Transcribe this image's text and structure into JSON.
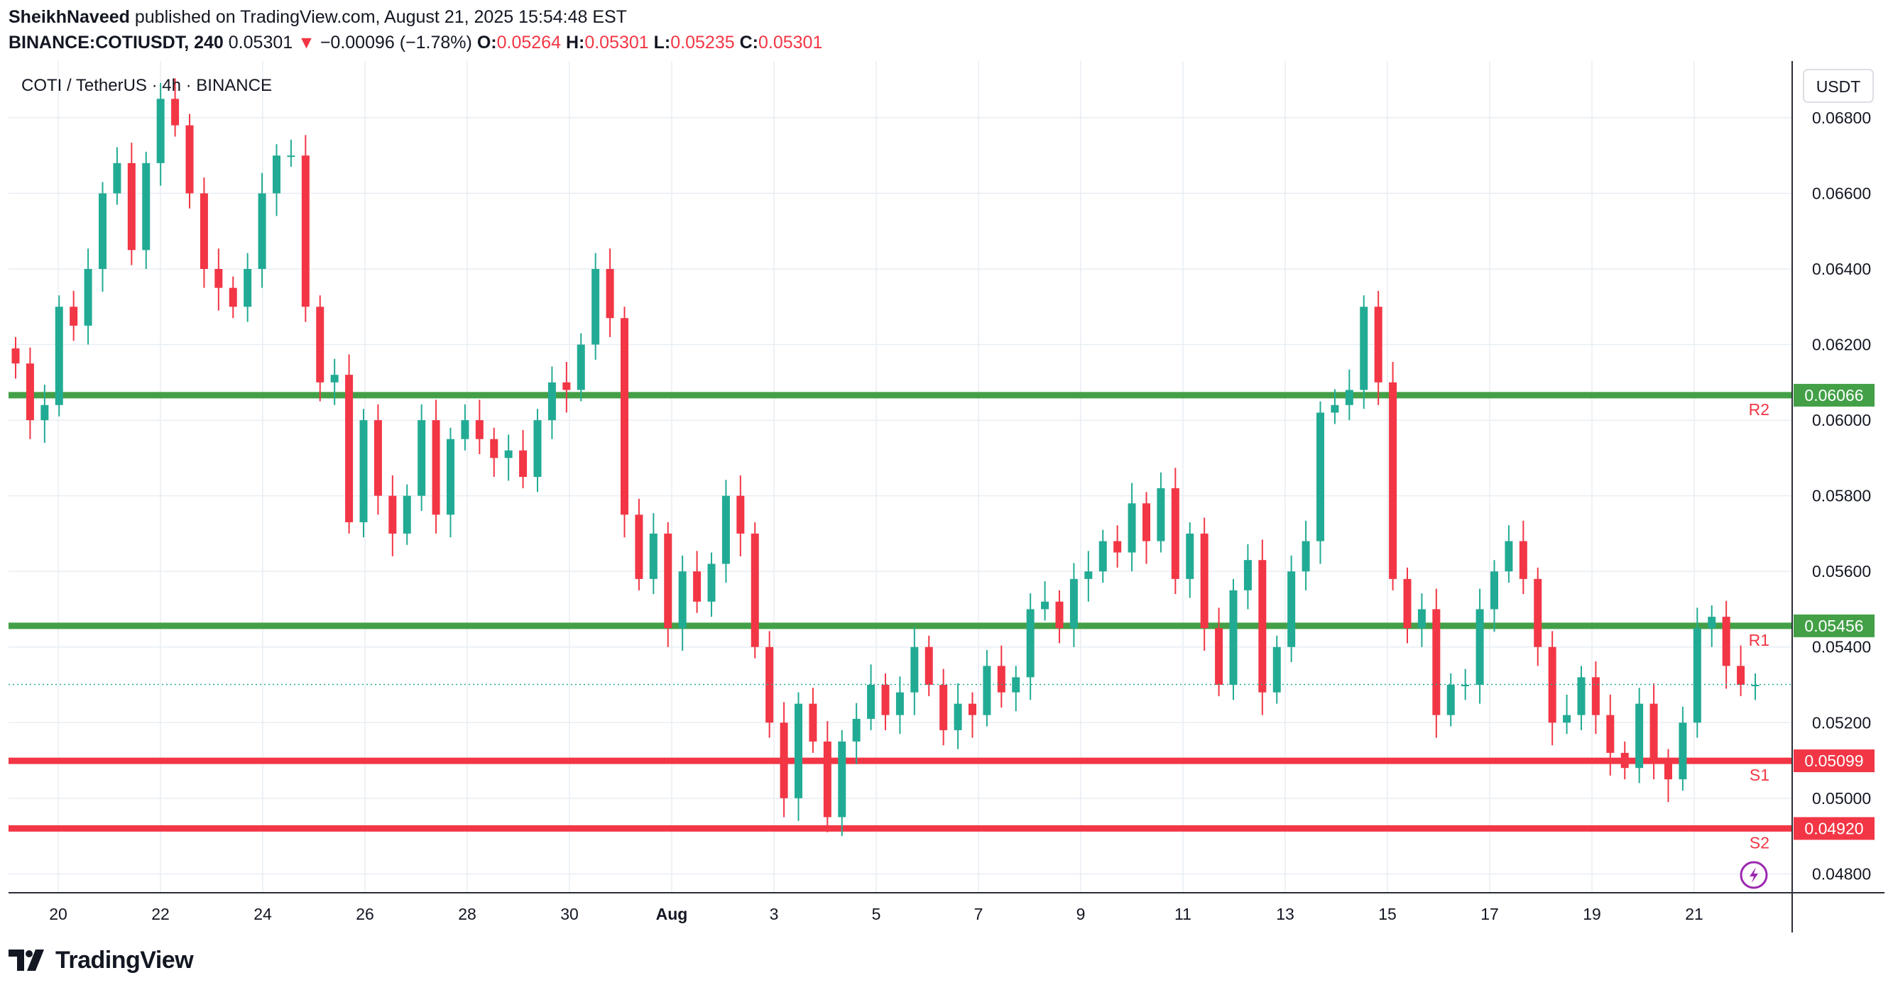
{
  "header": {
    "author": "SheikhNaveed",
    "published": "published on TradingView.com, August 21, 2025 15:54:48 EST",
    "symbol": "BINANCE:COTIUSDT, 240",
    "last": "0.05301",
    "change_arrow": "▼",
    "change": "−0.00096 (−1.78%)",
    "o_label": "O:",
    "o_value": "0.05264",
    "h_label": "H:",
    "h_value": "0.05301",
    "l_label": "L:",
    "l_value": "0.05235",
    "c_label": "C:",
    "c_value": "0.05301"
  },
  "legend_title": "COTI / TetherUS · 4h · BINANCE",
  "currency_button": "USDT",
  "brand": "TradingView",
  "colors": {
    "up": "#22ab94",
    "down": "#f23645",
    "resistance": "#43a047",
    "support": "#f23645",
    "grid": "#e8eef3",
    "text": "#131722"
  },
  "chart_data": {
    "type": "candlestick",
    "timeframe": "4h",
    "ylim": [
      0.0475,
      0.0695
    ],
    "y_ticks": [
      "0.04800",
      "0.05000",
      "0.05200",
      "0.05400",
      "0.05600",
      "0.05800",
      "0.06000",
      "0.06200",
      "0.06400",
      "0.06600",
      "0.06800"
    ],
    "x_ticks": [
      "20",
      "22",
      "24",
      "26",
      "28",
      "30",
      "Aug",
      "3",
      "5",
      "7",
      "9",
      "11",
      "13",
      "15",
      "17",
      "19",
      "21"
    ],
    "current_price": 0.05301,
    "levels": [
      {
        "name": "R2",
        "value": 0.06066,
        "label": "0.06066",
        "kind": "resistance"
      },
      {
        "name": "R1",
        "value": 0.05456,
        "label": "0.05456",
        "kind": "resistance"
      },
      {
        "name": "S1",
        "value": 0.05099,
        "label": "0.05099",
        "kind": "support"
      },
      {
        "name": "S2",
        "value": 0.0492,
        "label": "0.04920",
        "kind": "support"
      }
    ],
    "candles_approx": [
      0.0615,
      0.06,
      0.0604,
      0.063,
      0.0625,
      0.064,
      0.066,
      0.0668,
      0.0645,
      0.0668,
      0.0685,
      0.0678,
      0.066,
      0.064,
      0.0635,
      0.063,
      0.064,
      0.066,
      0.067,
      0.067,
      0.063,
      0.061,
      0.0612,
      0.0573,
      0.06,
      0.058,
      0.057,
      0.058,
      0.06,
      0.0575,
      0.0595,
      0.06,
      0.0595,
      0.059,
      0.0592,
      0.0585,
      0.06,
      0.061,
      0.0608,
      0.062,
      0.064,
      0.0627,
      0.0575,
      0.0558,
      0.057,
      0.0545,
      0.056,
      0.0552,
      0.0562,
      0.058,
      0.057,
      0.054,
      0.052,
      0.05,
      0.0525,
      0.0515,
      0.0495,
      0.0515,
      0.0521,
      0.053,
      0.0522,
      0.0528,
      0.054,
      0.053,
      0.0518,
      0.0525,
      0.0522,
      0.0535,
      0.0528,
      0.0532,
      0.055,
      0.0552,
      0.0545,
      0.0558,
      0.056,
      0.0568,
      0.0565,
      0.0578,
      0.0568,
      0.0582,
      0.0558,
      0.057,
      0.0545,
      0.053,
      0.0555,
      0.0563,
      0.0528,
      0.054,
      0.056,
      0.0568,
      0.0602,
      0.0604,
      0.0608,
      0.063,
      0.061,
      0.0558,
      0.0545,
      0.055,
      0.0522,
      0.053,
      0.053,
      0.055,
      0.056,
      0.0568,
      0.0558,
      0.054,
      0.052,
      0.0522,
      0.0532,
      0.0522,
      0.0512,
      0.0508,
      0.0525,
      0.051,
      0.0505,
      0.052,
      0.0545,
      0.0548,
      0.0535,
      0.053,
      0.053
    ]
  }
}
